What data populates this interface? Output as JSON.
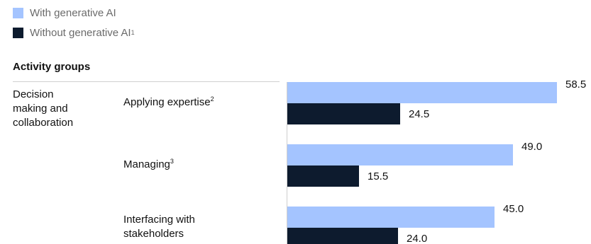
{
  "colors": {
    "with_ai": "#a4c4ff",
    "without_ai": "#0d1b2e"
  },
  "legend": {
    "with_label": "With generative AI",
    "without_label": "Without generative AI",
    "without_sup": "1"
  },
  "section_header": "Activity groups",
  "group_label_lines": [
    "Decision",
    "making and",
    "collaboration"
  ],
  "chart_data": {
    "type": "bar",
    "orientation": "horizontal",
    "categories": [
      "Applying expertise",
      "Managing",
      "Interfacing with stakeholders"
    ],
    "category_footnotes": [
      "2",
      "3",
      ""
    ],
    "series": [
      {
        "name": "With generative AI",
        "values": [
          58.5,
          49.0,
          45.0
        ]
      },
      {
        "name": "Without generative AI",
        "values": [
          24.5,
          15.5,
          24.0
        ]
      }
    ],
    "value_labels": [
      [
        "58.5",
        "49.0",
        "45.0"
      ],
      [
        "24.5",
        "15.5",
        "24.0"
      ]
    ],
    "xlim": [
      0,
      60
    ],
    "legend": "top-left",
    "grid": false
  }
}
